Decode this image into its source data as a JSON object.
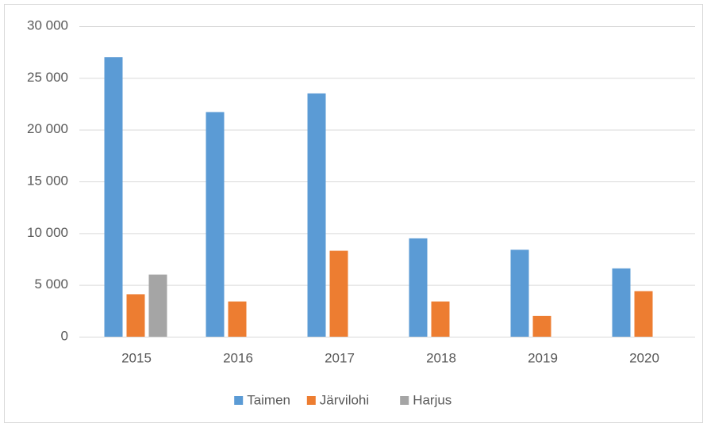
{
  "chart_data": {
    "type": "bar",
    "categories": [
      "2015",
      "2016",
      "2017",
      "2018",
      "2019",
      "2020"
    ],
    "series": [
      {
        "name": "Taimen",
        "color": "#5b9bd5",
        "values": [
          27000,
          21700,
          23500,
          9500,
          8400,
          6600
        ]
      },
      {
        "name": "Järvilohi",
        "color": "#ed7d31",
        "values": [
          4100,
          3400,
          8300,
          3400,
          2000,
          4400
        ]
      },
      {
        "name": "Harjus",
        "color": "#a5a5a5",
        "values": [
          6000,
          null,
          null,
          null,
          null,
          null
        ]
      }
    ],
    "ylim": [
      0,
      30000
    ],
    "yticks": [
      0,
      {
        "value": 5000,
        "label": "5 000"
      },
      {
        "value": 10000,
        "label": "10 000"
      },
      {
        "value": 15000,
        "label": "15 000"
      },
      {
        "value": 20000,
        "label": "20 000"
      },
      {
        "value": 25000,
        "label": "25 000"
      },
      {
        "value": 30000,
        "label": "30 000"
      }
    ],
    "grid": true,
    "legend": "bottom"
  }
}
